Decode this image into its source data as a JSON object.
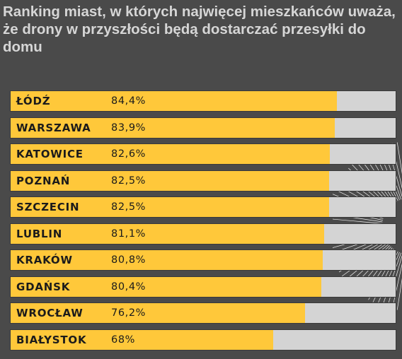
{
  "title": "Ranking miast, w których najwięcej mieszkańców uważa, że drony w przyszłości będą dostarczać przesyłki do domu",
  "colors": {
    "background": "#4a4a4a",
    "bar_fill": "#ffc83a",
    "bar_track": "#d4d4d4",
    "title_text": "#d6d6d6"
  },
  "chart_data": {
    "type": "bar",
    "orientation": "horizontal",
    "title": "Ranking miast, w których najwięcej mieszkańców uważa, że drony w przyszłości będą dostarczać przesyłki do domu",
    "categories": [
      "ŁÓDŹ",
      "WARSZAWA",
      "KATOWICE",
      "POZNAŃ",
      "SZCZECIN",
      "LUBLIN",
      "KRAKÓW",
      "GDAŃSK",
      "WROCŁAW",
      "BIAŁYSTOK"
    ],
    "values": [
      84.4,
      83.9,
      82.6,
      82.5,
      82.5,
      81.1,
      80.8,
      80.4,
      76.2,
      68
    ],
    "value_labels": [
      "84,4%",
      "83,9%",
      "82,6%",
      "82,5%",
      "82,5%",
      "81,1%",
      "80,8%",
      "80,4%",
      "76,2%",
      "68%"
    ],
    "xlim": [
      0,
      100
    ],
    "unit": "%",
    "grid": false,
    "legend": "none"
  }
}
